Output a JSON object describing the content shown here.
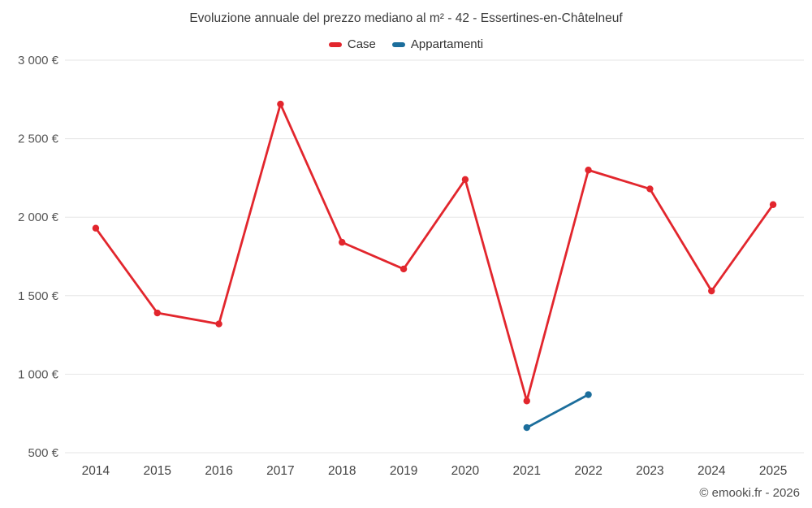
{
  "title": "Evoluzione annuale del prezzo mediano al m² - 42 - Essertines-en-Châtelneuf",
  "copyright": "© emooki.fr - 2026",
  "chart_data": {
    "type": "line",
    "title": "Evoluzione annuale del prezzo mediano al m² - 42 - Essertines-en-Châtelneuf",
    "categories": [
      "2014",
      "2015",
      "2016",
      "2017",
      "2018",
      "2019",
      "2020",
      "2021",
      "2022",
      "2023",
      "2024",
      "2025"
    ],
    "series": [
      {
        "name": "Case",
        "color": "#e2262d",
        "values": [
          1930,
          1390,
          1320,
          2720,
          1840,
          1670,
          2240,
          830,
          2300,
          2180,
          1530,
          2080
        ]
      },
      {
        "name": "Appartamenti",
        "color": "#1c6e9c",
        "values": [
          null,
          null,
          null,
          null,
          null,
          null,
          null,
          660,
          870,
          null,
          null,
          null
        ]
      }
    ],
    "ylim": [
      500,
      3000
    ],
    "ytick_step": 500,
    "ytick_labels": [
      "500 €",
      "1 000 €",
      "1 500 €",
      "2 000 €",
      "2 500 €",
      "3 000 €"
    ],
    "xlabel": "",
    "ylabel": "",
    "grid": "horizontal",
    "legend_position": "top"
  }
}
